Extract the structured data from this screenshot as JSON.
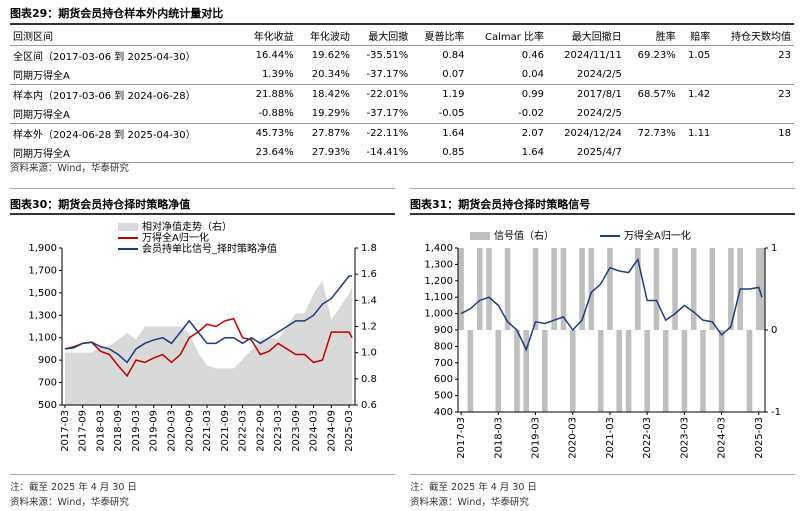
{
  "table": {
    "title": "图表29：期货会员持仓样本外内统计量对比",
    "header": [
      "回测区间",
      "年化收益",
      "年化波动",
      "最大回撤",
      "夏普比率",
      "Calmar 比率",
      "最大回撤日",
      "胜率",
      "赔率",
      "持仓天数均值"
    ],
    "rows": [
      [
        "全区间（2017-03-06 到 2025-04-30）",
        "16.44%",
        "19.62%",
        "-35.51%",
        "0.84",
        "0.46",
        "2024/11/11",
        "69.23%",
        "1.05",
        "23"
      ],
      [
        "同期万得全A",
        "1.39%",
        "20.34%",
        "-37.17%",
        "0.07",
        "0.04",
        "2024/2/5",
        null,
        null,
        null
      ],
      [
        "样本内（2017-03-06 到 2024-06-28）",
        "21.88%",
        "18.42%",
        "-22.01%",
        "1.19",
        "0.99",
        "2017/8/1",
        "68.57%",
        "1.42",
        "23"
      ],
      [
        "同期万得全A",
        "-0.88%",
        "19.29%",
        "-37.17%",
        "-0.05",
        "-0.02",
        "2024/2/5",
        null,
        null,
        null
      ],
      [
        "样本外（2024-06-28 到 2025-04-30）",
        "45.73%",
        "27.87%",
        "-22.11%",
        "1.64",
        "2.07",
        "2024/12/24",
        "72.73%",
        "1.11",
        "18"
      ],
      [
        "同期万得全A",
        "23.64%",
        "27.93%",
        "-14.41%",
        "0.85",
        "1.64",
        "2025/4/7",
        null,
        null,
        null
      ]
    ],
    "source": "资料来源：Wind，华泰研究"
  },
  "chart_data": [
    {
      "type": "line",
      "title": "图表30：期货会员持仓择时策略净值",
      "note": "注：截至 2025 年 4 月 30 日",
      "source": "资料来源：Wind，华泰研究",
      "x": [
        "2017-03",
        "2017-06",
        "2017-09",
        "2017-12",
        "2018-03",
        "2018-06",
        "2018-09",
        "2018-12",
        "2019-03",
        "2019-06",
        "2019-09",
        "2019-12",
        "2020-03",
        "2020-06",
        "2020-09",
        "2020-12",
        "2021-03",
        "2021-06",
        "2021-09",
        "2021-12",
        "2022-03",
        "2022-06",
        "2022-09",
        "2022-12",
        "2023-03",
        "2023-06",
        "2023-09",
        "2023-12",
        "2024-03",
        "2024-06",
        "2024-09",
        "2024-12",
        "2025-03",
        "2025-04"
      ],
      "xlim": [
        "2017-02",
        "2025-05"
      ],
      "xticks": [
        "2017-03",
        "2017-09",
        "2018-03",
        "2018-09",
        "2019-03",
        "2019-09",
        "2020-03",
        "2020-09",
        "2021-03",
        "2021-09",
        "2022-03",
        "2022-09",
        "2023-03",
        "2023-09",
        "2024-03",
        "2024-09",
        "2025-03"
      ],
      "ylim": [
        500,
        1900
      ],
      "yticks": [
        500,
        700,
        900,
        {
          "value": 1100,
          "label": "1,100"
        },
        {
          "value": 1300,
          "label": "1,300"
        },
        {
          "value": 1500,
          "label": "1,500"
        },
        {
          "value": 1700,
          "label": "1,700"
        },
        {
          "value": 1900,
          "label": "1,900"
        }
      ],
      "y2lim": [
        0.6,
        1.8
      ],
      "y2ticks": [
        0.6,
        0.8,
        {
          "value": 1,
          "label": "1.0"
        },
        1.2,
        1.4,
        1.6,
        1.8
      ],
      "series": [
        {
          "name": "相对净值走势（右）",
          "color": "#d9d9d9",
          "kind": "area",
          "axis": "y2",
          "values": [
            1.0,
            1.0,
            1.0,
            1.0,
            1.05,
            1.05,
            1.1,
            1.15,
            1.1,
            1.2,
            1.2,
            1.2,
            1.2,
            1.2,
            1.15,
            1.0,
            0.9,
            0.88,
            0.88,
            0.88,
            0.95,
            1.02,
            1.1,
            1.12,
            1.1,
            1.2,
            1.3,
            1.3,
            1.45,
            1.55,
            1.25,
            1.35,
            1.45,
            1.5
          ]
        },
        {
          "name": "万得全A归一化",
          "color": "#c00000",
          "kind": "line",
          "values": [
            1000,
            1020,
            1050,
            1060,
            980,
            950,
            850,
            760,
            900,
            880,
            920,
            950,
            880,
            950,
            1100,
            1150,
            1220,
            1200,
            1250,
            1270,
            1100,
            1080,
            950,
            980,
            1050,
            1000,
            950,
            950,
            880,
            900,
            1150,
            1150,
            1150,
            1100
          ]
        },
        {
          "name": "会员持单比信号_择时策略净值",
          "color": "#1f3d7a",
          "kind": "line",
          "values": [
            1000,
            1010,
            1050,
            1060,
            1020,
            1000,
            950,
            880,
            1000,
            1050,
            1080,
            1100,
            1050,
            1150,
            1250,
            1150,
            1050,
            1050,
            1100,
            1100,
            1050,
            1100,
            1050,
            1100,
            1150,
            1200,
            1250,
            1250,
            1300,
            1400,
            1450,
            1550,
            1650,
            1650
          ]
        }
      ]
    },
    {
      "type": "line",
      "title": "图表31：期货会员持仓择时策略信号",
      "note": "注：截至 2025 年 4 月 30 日",
      "source": "资料来源：Wind，华泰研究",
      "x": [
        "2017-03",
        "2017-06",
        "2017-09",
        "2017-12",
        "2018-03",
        "2018-06",
        "2018-09",
        "2018-12",
        "2019-03",
        "2019-06",
        "2019-09",
        "2019-12",
        "2020-03",
        "2020-06",
        "2020-09",
        "2020-12",
        "2021-03",
        "2021-06",
        "2021-09",
        "2021-12",
        "2022-03",
        "2022-06",
        "2022-09",
        "2022-12",
        "2023-03",
        "2023-06",
        "2023-09",
        "2023-12",
        "2024-03",
        "2024-06",
        "2024-09",
        "2024-12",
        "2025-03",
        "2025-04"
      ],
      "xlim": [
        "2017-02",
        "2025-05"
      ],
      "xticks": [
        "2017-03",
        "2018-03",
        "2019-03",
        "2020-03",
        "2021-03",
        "2022-03",
        "2023-03",
        "2024-03",
        "2025-03"
      ],
      "ylim": [
        400,
        1400
      ],
      "yticks": [
        400,
        500,
        600,
        700,
        800,
        900,
        {
          "value": 1000,
          "label": "1,000"
        },
        {
          "value": 1100,
          "label": "1,100"
        },
        {
          "value": 1200,
          "label": "1,200"
        },
        {
          "value": 1300,
          "label": "1,300"
        },
        {
          "value": 1400,
          "label": "1,400"
        }
      ],
      "y2lim": [
        -1,
        1
      ],
      "y2ticks": [
        -1,
        0,
        1
      ],
      "series": [
        {
          "name": "信号值（右）",
          "color": "#bfbfbf",
          "kind": "bar",
          "axis": "y2",
          "values": [
            1,
            -1,
            1,
            1,
            -1,
            1,
            -1,
            -1,
            1,
            -1,
            1,
            1,
            -1,
            1,
            1,
            -1,
            1,
            -1,
            -1,
            1,
            -1,
            1,
            -1,
            1,
            -1,
            1,
            -1,
            1,
            -1,
            1,
            1,
            -1,
            1,
            1
          ]
        },
        {
          "name": "万得全A归一化",
          "color": "#1f3d7a",
          "kind": "line",
          "values": [
            1000,
            1030,
            1080,
            1100,
            1050,
            950,
            900,
            780,
            950,
            940,
            960,
            980,
            900,
            960,
            1130,
            1180,
            1280,
            1260,
            1250,
            1330,
            1080,
            1080,
            960,
            1000,
            1050,
            1010,
            960,
            950,
            870,
            920,
            1150,
            1150,
            1160,
            1100
          ]
        }
      ]
    }
  ]
}
